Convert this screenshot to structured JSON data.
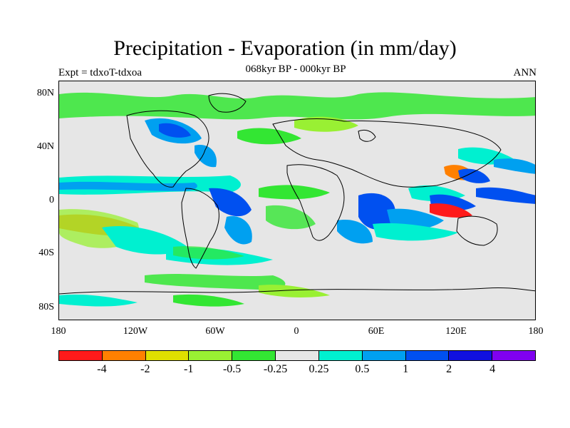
{
  "title": "Precipitation - Evaporation (in mm/day)",
  "subtitle": "068kyr BP - 000kyr BP",
  "experiment_label": "Expt = tdxoT-tdxoa",
  "season_label": "ANN",
  "map": {
    "background_color": "#e6e6e6",
    "latitude_labels": [
      "80N",
      "40N",
      "0",
      "40S",
      "80S"
    ],
    "longitude_labels": [
      "180",
      "120W",
      "60W",
      "0",
      "60E",
      "120E",
      "180"
    ]
  },
  "colorbar": {
    "colors": [
      "#ff1a1a",
      "#ff8000",
      "#e0e000",
      "#99f033",
      "#33e633",
      "#e6e6e6",
      "#00f0d0",
      "#00a0f0",
      "#0050f0",
      "#1010e0",
      "#8000f0"
    ],
    "labels": [
      "-4",
      "-2",
      "-1",
      "-0.5",
      "-0.25",
      "0.25",
      "0.5",
      "1",
      "2",
      "4"
    ]
  }
}
